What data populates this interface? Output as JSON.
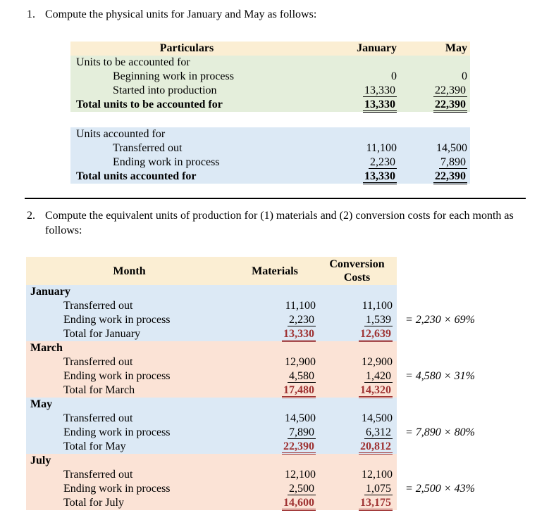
{
  "colors": {
    "header_bg": "#FBEED3",
    "green_bg": "#E4EEDB",
    "blue_bg": "#DCE9F5",
    "salmon_bg": "#FBE3D6",
    "total_red": "#9E3232"
  },
  "item1": {
    "number": "1.",
    "text": "Compute the physical units for January and May as follows:"
  },
  "item2": {
    "number": "2.",
    "text": "Compute the equivalent units of production for (1) materials and (2) conversion costs for each month as follows:"
  },
  "table1": {
    "headers": {
      "particulars": "Particulars",
      "january": "January",
      "may": "May"
    },
    "to_be_accounted": {
      "section_label": "Units to be accounted for",
      "rows": [
        {
          "label": "Beginning work in process",
          "january": "0",
          "may": "0"
        },
        {
          "label": "Started into production",
          "january": "13,330",
          "may": "22,390"
        }
      ],
      "total": {
        "label": "Total units to be accounted for",
        "january": "13,330",
        "may": "22,390"
      }
    },
    "accounted": {
      "section_label": "Units accounted for",
      "rows": [
        {
          "label": "Transferred out",
          "january": "11,100",
          "may": "14,500"
        },
        {
          "label": "Ending work in process",
          "january": "2,230",
          "may": "7,890"
        }
      ],
      "total": {
        "label": "Total units accounted for",
        "january": "13,330",
        "may": "22,390"
      }
    }
  },
  "table2": {
    "headers": {
      "month": "Month",
      "materials": "Materials",
      "conversion": "Conversion Costs"
    },
    "months": [
      {
        "name": "January",
        "transferred": {
          "label": "Transferred out",
          "materials": "11,100",
          "conversion": "11,100"
        },
        "ending": {
          "label": "Ending work in process",
          "materials": "2,230",
          "conversion": "1,539",
          "note": "= 2,230 × 69%"
        },
        "total": {
          "label": "Total for January",
          "materials": "13,330",
          "conversion": "12,639"
        }
      },
      {
        "name": "March",
        "transferred": {
          "label": "Transferred out",
          "materials": "12,900",
          "conversion": "12,900"
        },
        "ending": {
          "label": "Ending work in process",
          "materials": "4,580",
          "conversion": "1,420",
          "note": "= 4,580 × 31%"
        },
        "total": {
          "label": "Total for March",
          "materials": "17,480",
          "conversion": "14,320"
        }
      },
      {
        "name": "May",
        "transferred": {
          "label": "Transferred out",
          "materials": "14,500",
          "conversion": "14,500"
        },
        "ending": {
          "label": "Ending work in process",
          "materials": "7,890",
          "conversion": "6,312",
          "note": "= 7,890 × 80%"
        },
        "total": {
          "label": "Total for May",
          "materials": "22,390",
          "conversion": "20,812"
        }
      },
      {
        "name": "July",
        "transferred": {
          "label": "Transferred out",
          "materials": "12,100",
          "conversion": "12,100"
        },
        "ending": {
          "label": "Ending work in process",
          "materials": "2,500",
          "conversion": "1,075",
          "note": "= 2,500 × 43%"
        },
        "total": {
          "label": "Total for July",
          "materials": "14,600",
          "conversion": "13,175"
        }
      }
    ]
  }
}
